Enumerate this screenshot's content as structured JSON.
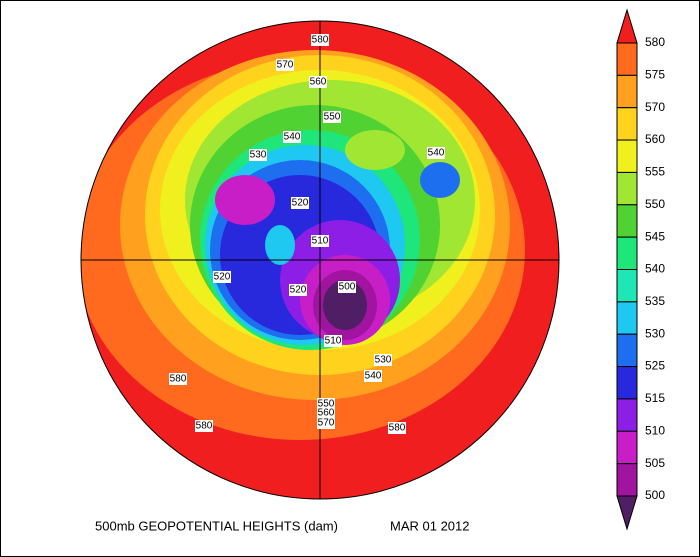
{
  "title": "500mb GEOPOTENTIAL HEIGHTS (dam)",
  "date": "MAR 01 2012",
  "colorbar": {
    "levels": [
      580,
      575,
      570,
      560,
      555,
      550,
      545,
      540,
      535,
      530,
      525,
      515,
      510,
      505,
      500
    ],
    "colors": [
      "#f01e1e",
      "#ff6a1e",
      "#ffa01e",
      "#ffd21e",
      "#f0f01e",
      "#a0e632",
      "#50d232",
      "#1ee67a",
      "#1ee6b4",
      "#1ec8f0",
      "#1e6ef0",
      "#2828dc",
      "#8c1ee6",
      "#c81ec8",
      "#a0149f",
      "#501e64"
    ]
  },
  "contour_labels": [
    580,
    570,
    560,
    550,
    540,
    530,
    540,
    520,
    510,
    500,
    520,
    520,
    510,
    530,
    540,
    580,
    580,
    580,
    550,
    560,
    570
  ]
}
